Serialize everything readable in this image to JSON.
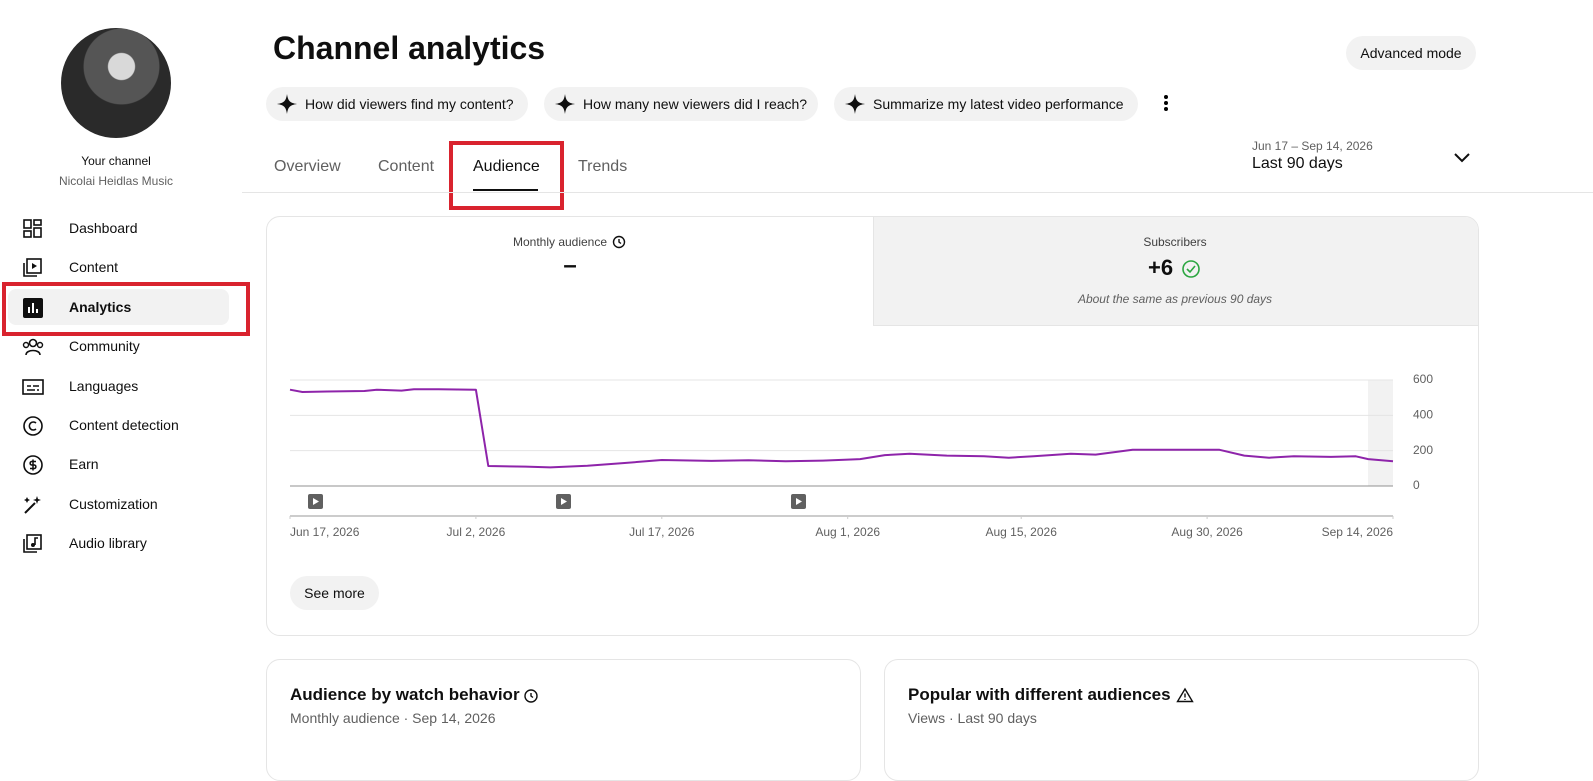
{
  "sidebar": {
    "channel_label": "Your channel",
    "channel_name": "Nicolai Heidlas Music",
    "nav": [
      "Dashboard",
      "Content",
      "Analytics",
      "Community",
      "Languages",
      "Content detection",
      "Earn",
      "Customization",
      "Audio library"
    ]
  },
  "header": {
    "title": "Channel analytics",
    "advanced_button": "Advanced mode",
    "suggestions": [
      "How did viewers find my content?",
      "How many new viewers did I reach?",
      "Summarize my latest video performance"
    ]
  },
  "tabs": [
    "Overview",
    "Content",
    "Audience",
    "Trends"
  ],
  "date_range": {
    "range": "Jun 17 – Sep 14, 2026",
    "label": "Last 90 days"
  },
  "metrics": [
    {
      "label": "Monthly audience",
      "value": "–"
    },
    {
      "label": "Subscribers",
      "value": "+6",
      "note": "About the same as previous 90 days"
    }
  ],
  "chart_data": {
    "type": "line",
    "color": "#8e24aa",
    "x": [
      0,
      1,
      3,
      6,
      7,
      9,
      10,
      12,
      15,
      16,
      19,
      21,
      24,
      27,
      30,
      34,
      37,
      40,
      43,
      46,
      48,
      50,
      53,
      56,
      58,
      60,
      63,
      65,
      68,
      72,
      75,
      77,
      79,
      81,
      84,
      86,
      87,
      89
    ],
    "values": [
      545,
      532,
      535,
      538,
      545,
      540,
      548,
      548,
      545,
      113,
      110,
      105,
      115,
      130,
      147,
      142,
      146,
      140,
      144,
      152,
      175,
      182,
      172,
      168,
      160,
      168,
      182,
      178,
      205,
      205,
      205,
      172,
      160,
      168,
      165,
      168,
      152,
      140
    ],
    "xlim": [
      0,
      89
    ],
    "xticks": [
      {
        "value": 0,
        "label": "Jun 17, 2026"
      },
      {
        "value": 15,
        "label": "Jul 2, 2026"
      },
      {
        "value": 30,
        "label": "Jul 17, 2026"
      },
      {
        "value": 45,
        "label": "Aug 1, 2026"
      },
      {
        "value": 59,
        "label": "Aug 15, 2026"
      },
      {
        "value": 74,
        "label": "Aug 30, 2026"
      },
      {
        "value": 89,
        "label": "Sep 14, 2026"
      }
    ],
    "ylim": [
      0,
      600
    ],
    "yticks": [
      0,
      200,
      400,
      600
    ],
    "grid": true
  },
  "see_more_button": "See more",
  "cards": [
    {
      "title": "Audience by watch behavior",
      "subtitle": "Monthly audience · Sep 14, 2026"
    },
    {
      "title": "Popular with different audiences",
      "subtitle": "Views · Last 90 days"
    }
  ]
}
